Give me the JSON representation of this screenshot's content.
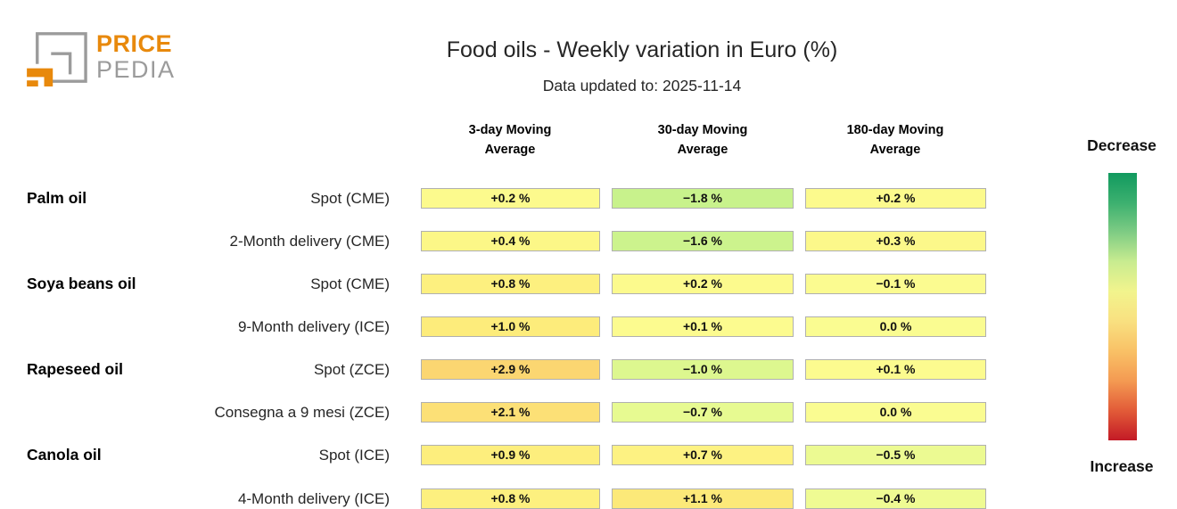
{
  "logo": {
    "brand_top": "PRICE",
    "brand_bottom": "PEDIA",
    "orange": "#e8890c",
    "gray": "#9b9b9b"
  },
  "header": {
    "title": "Food oils - Weekly variation in Euro (%)",
    "subtitle": "Data updated to: 2025-11-14"
  },
  "table": {
    "column_headers": [
      "3-day Moving\nAverage",
      "30-day Moving\nAverage",
      "180-day Moving\nAverage"
    ],
    "cell_border_color": "#b0b0b0",
    "rows": [
      {
        "group": "Palm oil",
        "label": "Spot (CME)",
        "cells": [
          {
            "value": "+0.2 %",
            "color": "#fcfa8d"
          },
          {
            "value": "−1.8 %",
            "color": "#c8f28c"
          },
          {
            "value": "+0.2 %",
            "color": "#fcfa8d"
          }
        ]
      },
      {
        "group": "",
        "label": "2-Month delivery (CME)",
        "cells": [
          {
            "value": "+0.4 %",
            "color": "#fcf787"
          },
          {
            "value": "−1.6 %",
            "color": "#ccf38d"
          },
          {
            "value": "+0.3 %",
            "color": "#fcf88a"
          }
        ]
      },
      {
        "group": "Soya beans oil",
        "label": "Spot (CME)",
        "cells": [
          {
            "value": "+0.8 %",
            "color": "#fdf07f"
          },
          {
            "value": "+0.2 %",
            "color": "#fcfa8d"
          },
          {
            "value": "−0.1 %",
            "color": "#fbfb90"
          }
        ]
      },
      {
        "group": "",
        "label": "9-Month delivery (ICE)",
        "cells": [
          {
            "value": "+1.0 %",
            "color": "#fdec7b"
          },
          {
            "value": "+0.1 %",
            "color": "#fcfb8f"
          },
          {
            "value": "0.0 %",
            "color": "#fafc91"
          }
        ]
      },
      {
        "group": "Rapeseed oil",
        "label": "Spot (ZCE)",
        "cells": [
          {
            "value": "+2.9 %",
            "color": "#fbd671"
          },
          {
            "value": "−1.0 %",
            "color": "#ddf78f"
          },
          {
            "value": "+0.1 %",
            "color": "#fcfb8f"
          }
        ]
      },
      {
        "group": "",
        "label": "Consegna a 9 mesi (ZCE)",
        "cells": [
          {
            "value": "+2.1 %",
            "color": "#fce076"
          },
          {
            "value": "−0.7 %",
            "color": "#e7fa91"
          },
          {
            "value": "0.0 %",
            "color": "#fafc91"
          }
        ]
      },
      {
        "group": "Canola oil",
        "label": "Spot (ICE)",
        "cells": [
          {
            "value": "+0.9 %",
            "color": "#fdee7d"
          },
          {
            "value": "+0.7 %",
            "color": "#fdf282"
          },
          {
            "value": "−0.5 %",
            "color": "#ecfa92"
          }
        ]
      },
      {
        "group": "",
        "label": "4-Month delivery (ICE)",
        "cells": [
          {
            "value": "+0.8 %",
            "color": "#fdf07f"
          },
          {
            "value": "+1.1 %",
            "color": "#fce979"
          },
          {
            "value": "−0.4 %",
            "color": "#effb93"
          }
        ]
      }
    ]
  },
  "legend": {
    "top_label": "Decrease",
    "bottom_label": "Increase",
    "gradient": [
      "#119a5f",
      "#3cb06f",
      "#7fcc84",
      "#c9ec90",
      "#f2f48d",
      "#f9e080",
      "#f9c166",
      "#f49a52",
      "#e25b38",
      "#c31a26"
    ]
  },
  "chart_data": {
    "type": "heatmap",
    "title": "Food oils - Weekly variation in Euro (%)",
    "subtitle": "Data updated to: 2025-11-14",
    "columns": [
      "3-day Moving Average",
      "30-day Moving Average",
      "180-day Moving Average"
    ],
    "rows": [
      {
        "group": "Palm oil",
        "label": "Spot (CME)",
        "values_pct": [
          0.2,
          -1.8,
          0.2
        ]
      },
      {
        "group": "Palm oil",
        "label": "2-Month delivery (CME)",
        "values_pct": [
          0.4,
          -1.6,
          0.3
        ]
      },
      {
        "group": "Soya beans oil",
        "label": "Spot (CME)",
        "values_pct": [
          0.8,
          0.2,
          -0.1
        ]
      },
      {
        "group": "Soya beans oil",
        "label": "9-Month delivery (ICE)",
        "values_pct": [
          1.0,
          0.1,
          0.0
        ]
      },
      {
        "group": "Rapeseed oil",
        "label": "Spot (ZCE)",
        "values_pct": [
          2.9,
          -1.0,
          0.1
        ]
      },
      {
        "group": "Rapeseed oil",
        "label": "Consegna a 9 mesi (ZCE)",
        "values_pct": [
          2.1,
          -0.7,
          0.0
        ]
      },
      {
        "group": "Canola oil",
        "label": "Spot (ICE)",
        "values_pct": [
          0.9,
          0.7,
          -0.5
        ]
      },
      {
        "group": "Canola oil",
        "label": "4-Month delivery (ICE)",
        "values_pct": [
          0.8,
          1.1,
          -0.4
        ]
      }
    ],
    "colorbar": {
      "top_label": "Decrease",
      "top_color": "#119a5f",
      "bottom_label": "Increase",
      "bottom_color": "#c31a26",
      "neutral_color": "#f2f48d",
      "position": "right"
    },
    "grid": false,
    "legend_position": "right"
  }
}
